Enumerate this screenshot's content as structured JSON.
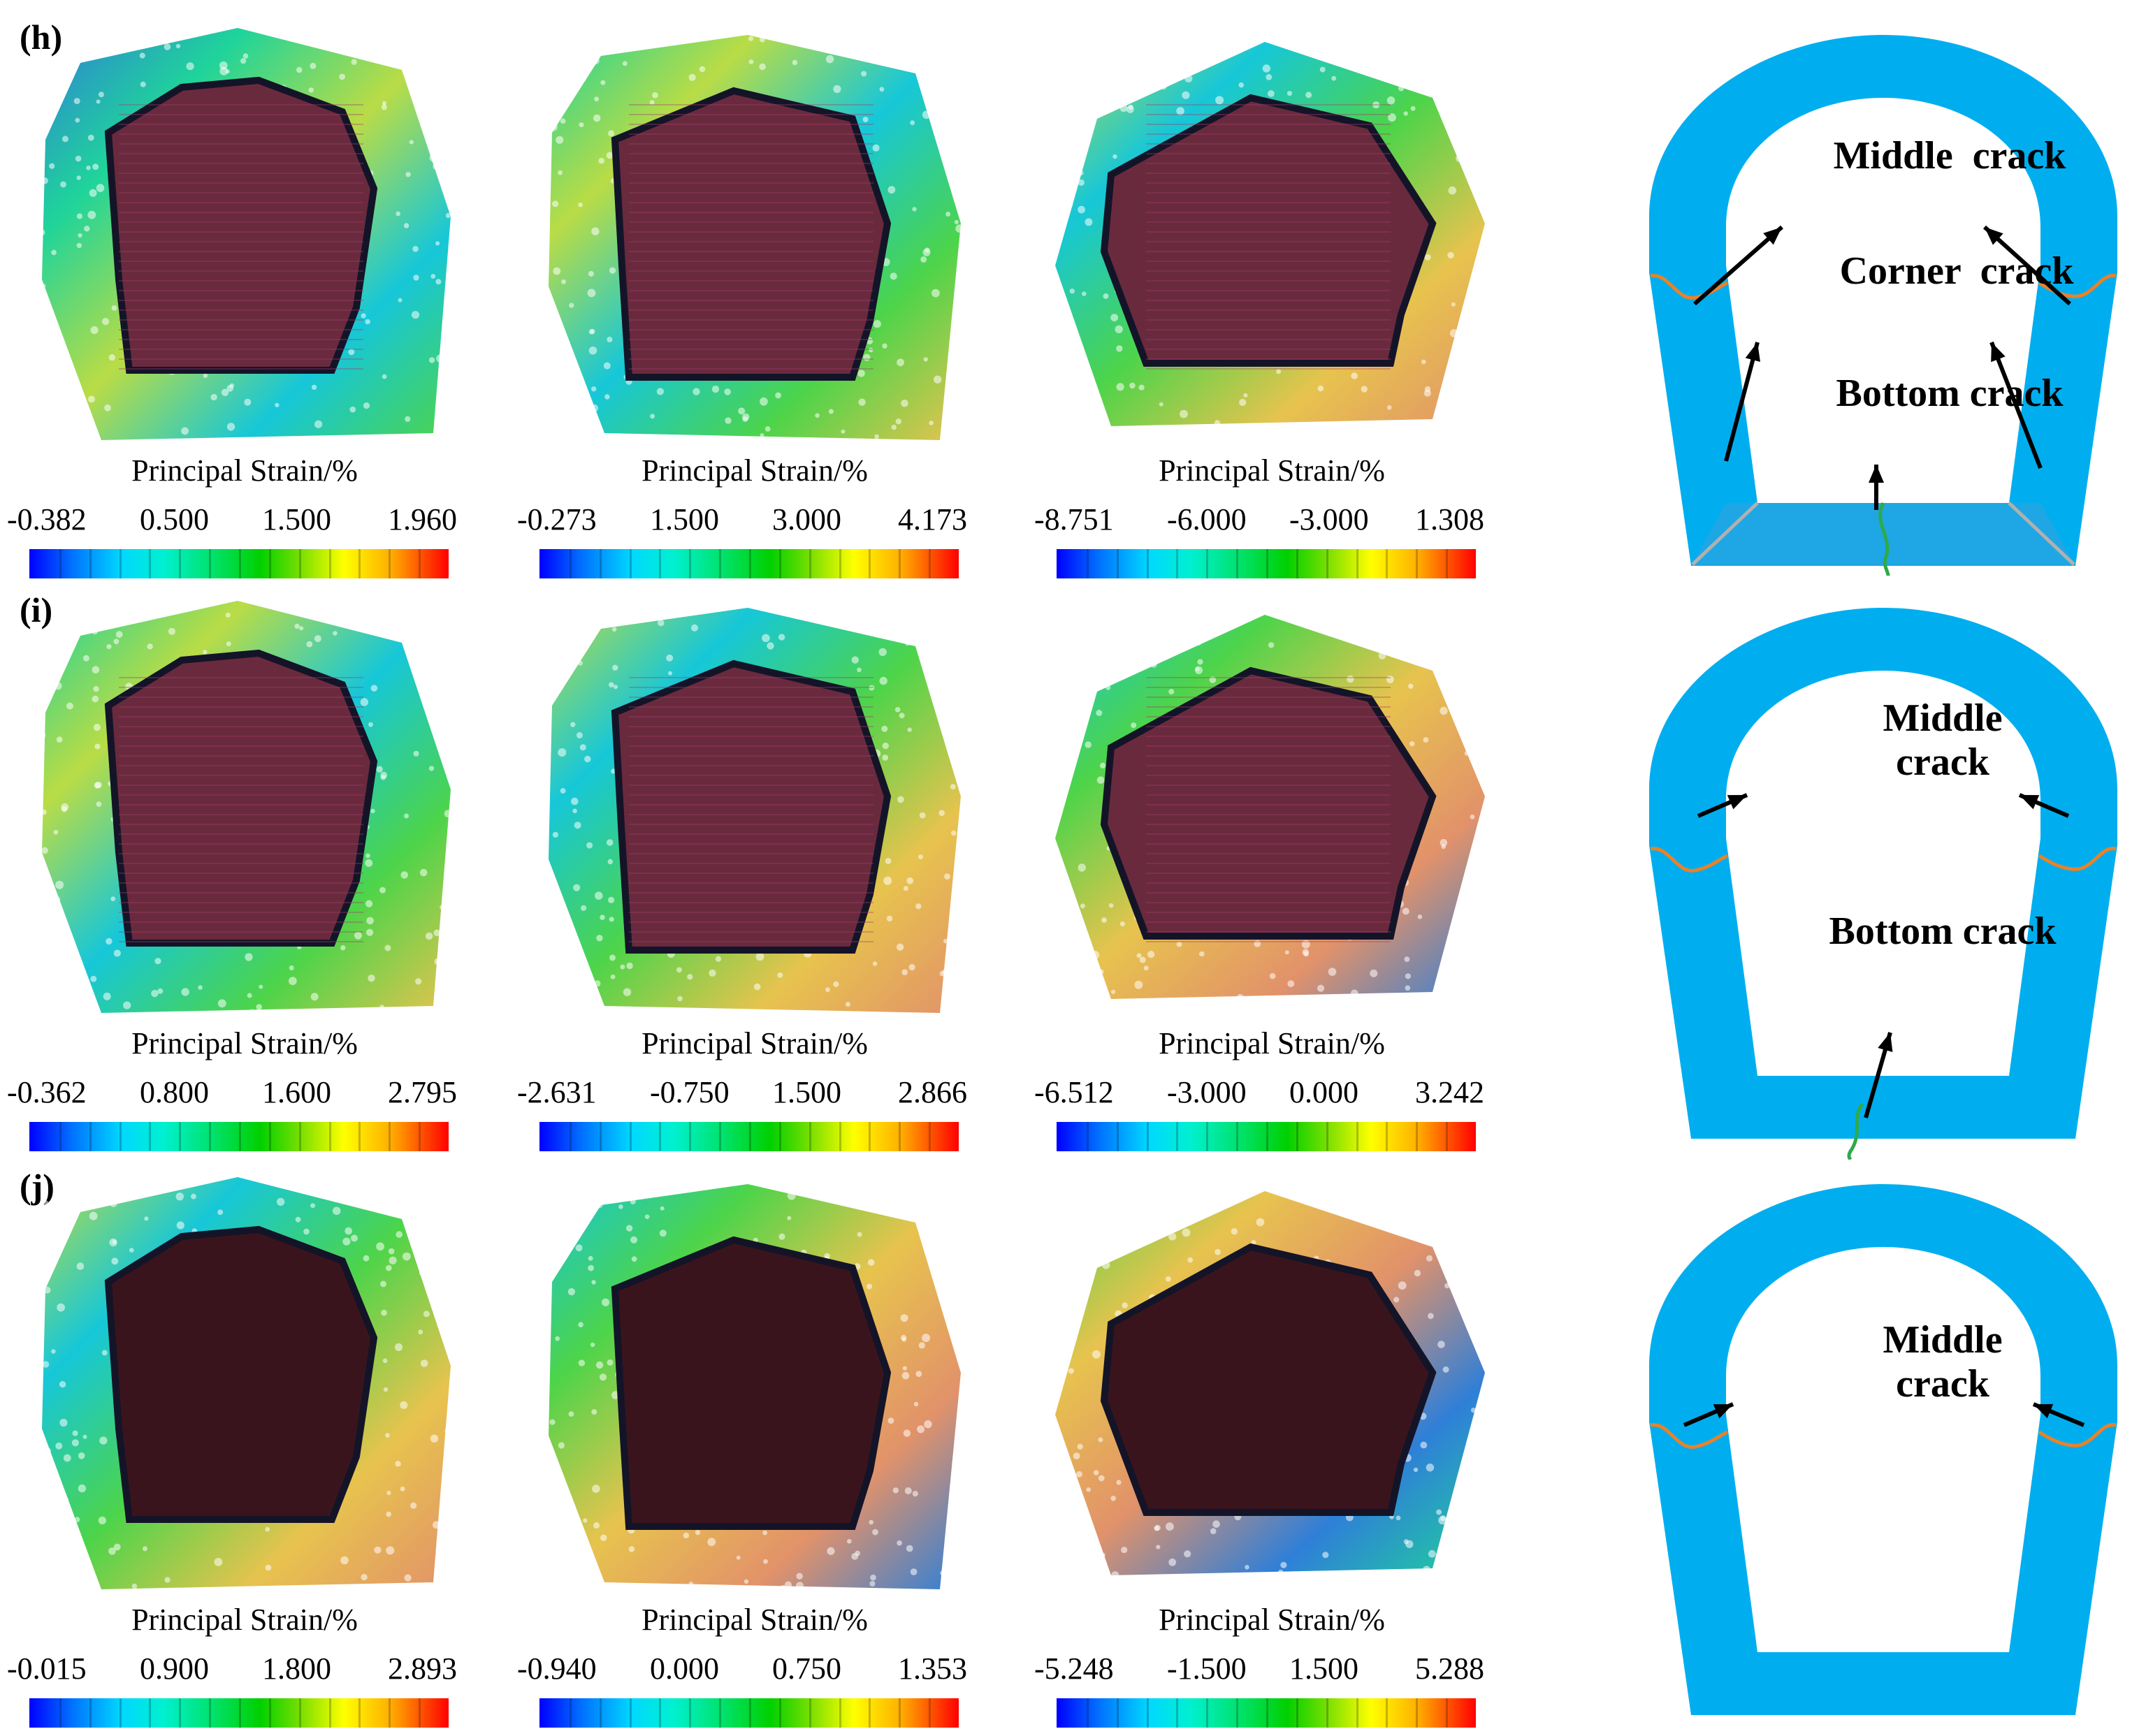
{
  "colors": {
    "lining": "#00aeef",
    "side_crack": "#e8822a",
    "floor_crack": "#2eaa4a",
    "arrow": "#000000",
    "cavity": "#6a2a3e",
    "cavity_dark": "#3a141c"
  },
  "rows": [
    {
      "label": "(h)",
      "panels": [
        {
          "scale_title": "Principal   Strain/%",
          "ticks": [
            "-0.382",
            "0.500",
            "1.500",
            "1.960"
          ]
        },
        {
          "scale_title": "Principal   Strain/%",
          "ticks": [
            "-0.273",
            "1.500",
            "3.000",
            "4.173"
          ]
        },
        {
          "scale_title": "Principal   Strain/%",
          "ticks": [
            "-8.751",
            "-6.000",
            "-3.000",
            "1.308"
          ]
        }
      ],
      "schematic": {
        "labels": [
          "Middle  crack",
          "Corner  crack",
          "Bottom crack"
        ]
      }
    },
    {
      "label": "(i)",
      "panels": [
        {
          "scale_title": "Principal   Strain/%",
          "ticks": [
            "-0.362",
            "0.800",
            "1.600",
            "2.795"
          ]
        },
        {
          "scale_title": "Principal   Strain/%",
          "ticks": [
            "-2.631",
            "-0.750",
            "1.500",
            "2.866"
          ]
        },
        {
          "scale_title": "Principal   Strain/%",
          "ticks": [
            "-6.512",
            "-3.000",
            "0.000",
            "3.242"
          ]
        }
      ],
      "schematic": {
        "labels": [
          "Middle\ncrack",
          "Bottom crack"
        ]
      }
    },
    {
      "label": "(j)",
      "panels": [
        {
          "scale_title": "Principal   Strain/%",
          "ticks": [
            "-0.015",
            "0.900",
            "1.800",
            "2.893"
          ]
        },
        {
          "scale_title": "Principal   Strain/%",
          "ticks": [
            "-0.940",
            "0.000",
            "0.750",
            "1.353"
          ]
        },
        {
          "scale_title": "Principal   Strain/%",
          "ticks": [
            "-5.248",
            "-1.500",
            "1.500",
            "5.288"
          ]
        }
      ],
      "schematic": {
        "labels": [
          "Middle\ncrack"
        ]
      }
    }
  ]
}
